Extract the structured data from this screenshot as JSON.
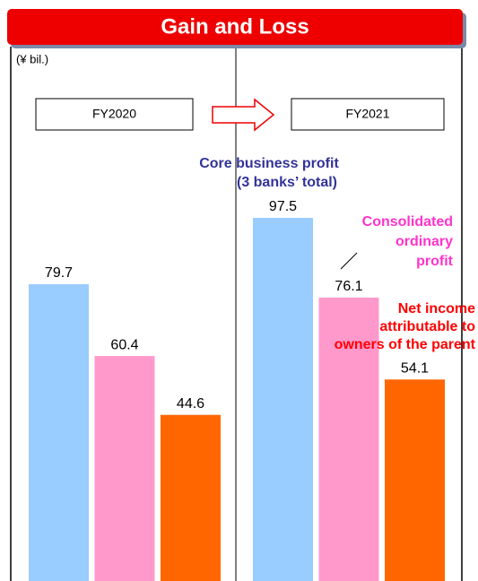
{
  "chart_data": {
    "type": "bar",
    "title": "Gain and Loss",
    "unit_label": "(¥ bil.)",
    "categories": [
      "FY2020",
      "FY2021"
    ],
    "ylim": [
      0,
      156
    ],
    "series": [
      {
        "name": [
          "Core business profit",
          "(3 banks’ total)"
        ],
        "color": "#99ccff",
        "label_color": "#333399",
        "values": [
          79.7,
          97.5
        ]
      },
      {
        "name": [
          "Consolidated",
          "ordinary",
          "profit"
        ],
        "color": "#ff99cc",
        "label_color": "#ff33cc",
        "values": [
          60.4,
          76.1
        ]
      },
      {
        "name": [
          "Net income",
          "attributable to",
          "owners of the parent"
        ],
        "color": "#ff6600",
        "label_color": "#ff0000",
        "values": [
          44.6,
          54.1
        ]
      }
    ]
  }
}
